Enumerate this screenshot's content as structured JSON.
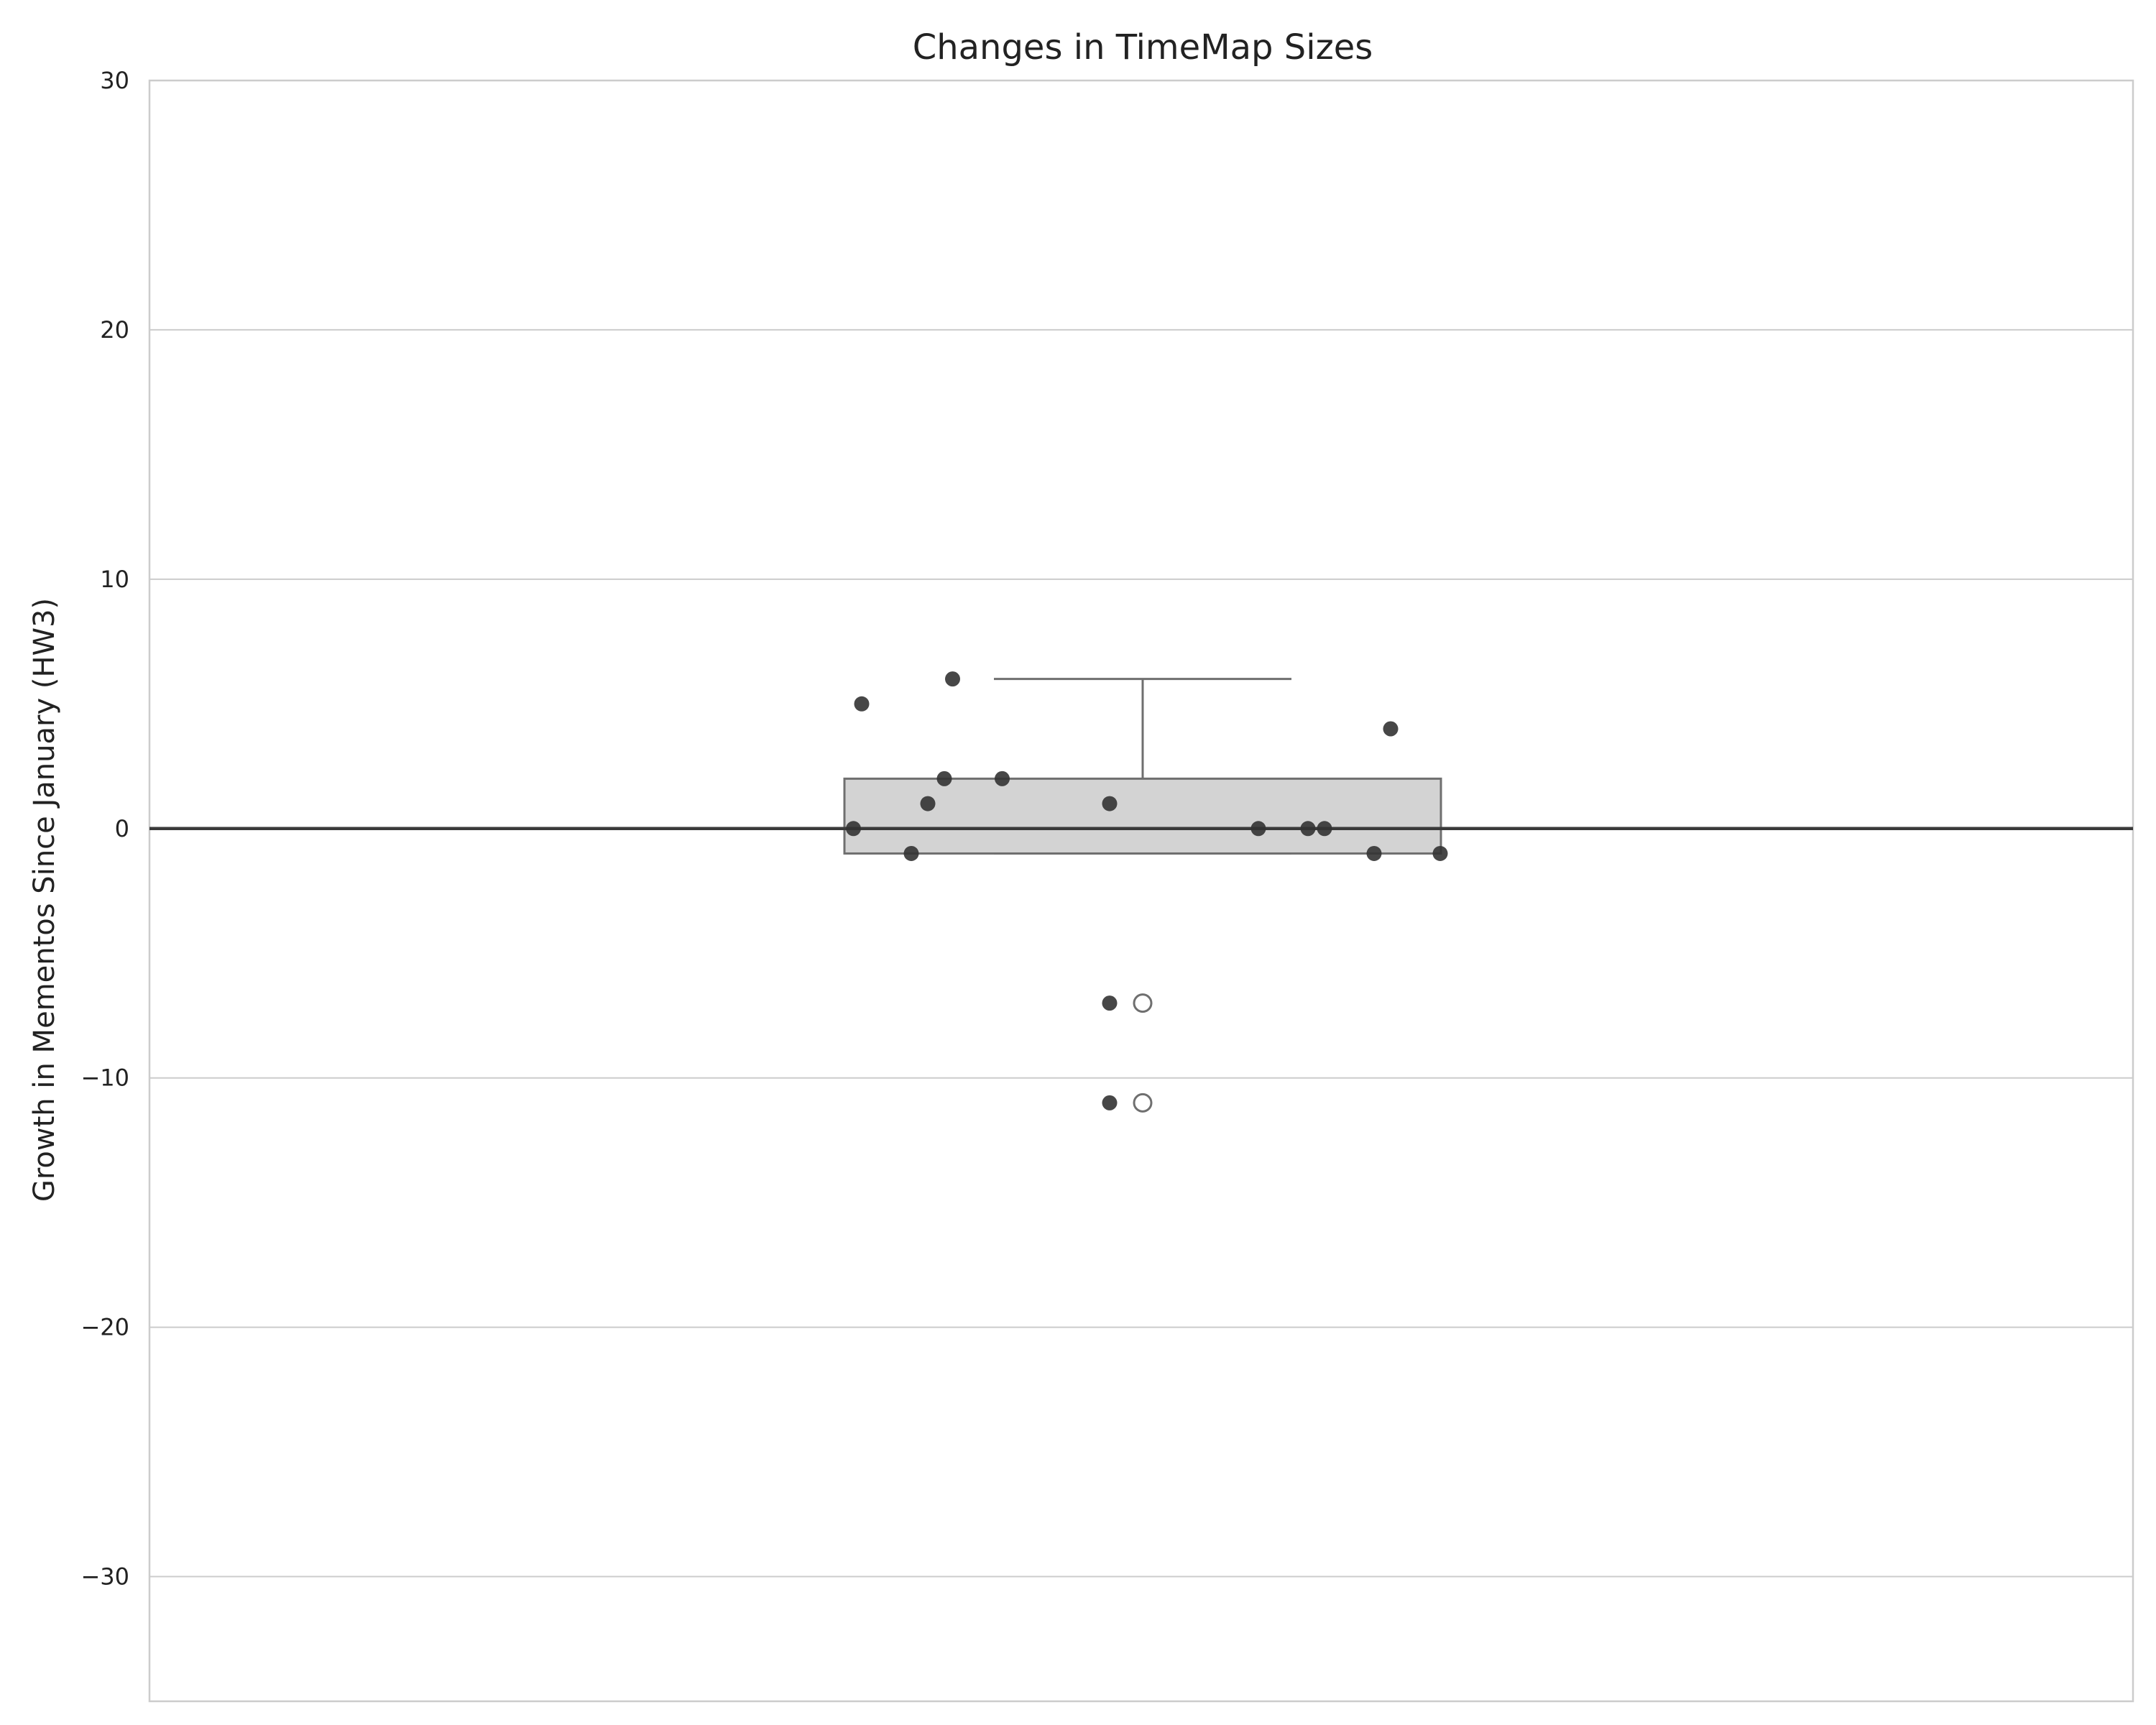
{
  "chart_data": {
    "type": "box",
    "title": "Changes in TimeMap Sizes",
    "xlabel": "",
    "ylabel": "Growth in Mementos Since January (HW3)",
    "ylim": [
      -35,
      30
    ],
    "yticks": [
      30,
      20,
      10,
      0,
      -10,
      -20,
      -30
    ],
    "ytick_labels": [
      "30",
      "20",
      "10",
      "0",
      "−10",
      "−20",
      "−30"
    ],
    "grid": "horizontal",
    "reference_line": 0,
    "box": {
      "q1": -1,
      "median": 0,
      "q3": 2,
      "whisker_low": -1,
      "whisker_high": 6,
      "outliers": [
        -7,
        -11
      ]
    },
    "points": [
      {
        "jitter": -0.34,
        "y": 5
      },
      {
        "jitter": -0.23,
        "y": 6
      },
      {
        "jitter": -0.24,
        "y": 2
      },
      {
        "jitter": -0.17,
        "y": 2
      },
      {
        "jitter": 0.3,
        "y": 4
      },
      {
        "jitter": -0.26,
        "y": 1
      },
      {
        "jitter": -0.04,
        "y": 1
      },
      {
        "jitter": -0.35,
        "y": 0
      },
      {
        "jitter": 0.14,
        "y": 0
      },
      {
        "jitter": 0.2,
        "y": 0
      },
      {
        "jitter": 0.22,
        "y": 0
      },
      {
        "jitter": -0.28,
        "y": -1
      },
      {
        "jitter": 0.28,
        "y": -1
      },
      {
        "jitter": 0.36,
        "y": -1
      },
      {
        "jitter": -0.04,
        "y": -7
      },
      {
        "jitter": -0.04,
        "y": -11
      }
    ],
    "colors": {
      "box_fill": "#d3d3d3",
      "box_edge": "#6f6f6f",
      "points": "#333333",
      "grid": "#cccccc",
      "zero_line": "#3a3a3a"
    }
  }
}
